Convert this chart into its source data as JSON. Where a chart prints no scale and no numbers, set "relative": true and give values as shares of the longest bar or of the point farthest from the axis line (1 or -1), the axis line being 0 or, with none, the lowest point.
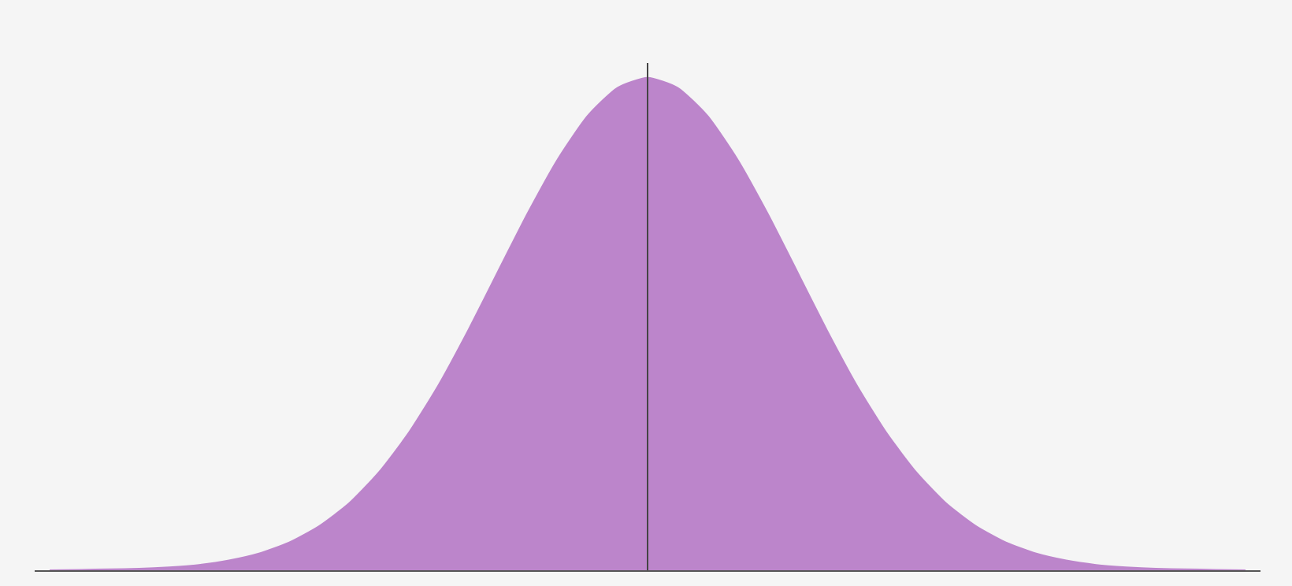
{
  "chart_data": {
    "type": "area",
    "relative": true,
    "color": "#bc85cb",
    "categories": [
      null,
      null,
      null,
      null,
      null,
      null,
      null,
      null,
      null,
      null,
      null,
      null,
      null,
      null,
      null,
      null,
      null,
      null,
      null,
      null,
      null,
      null,
      null,
      null,
      null,
      null,
      null,
      null,
      null,
      null,
      null,
      null,
      null,
      null,
      null,
      null,
      null,
      null,
      null,
      null,
      null
    ],
    "values": [
      0,
      0.001,
      0.002,
      0.003,
      0.006,
      0.011,
      0.02,
      0.034,
      0.056,
      0.089,
      0.135,
      0.198,
      0.278,
      0.375,
      0.487,
      0.607,
      0.726,
      0.835,
      0.923,
      0.98,
      1,
      0.98,
      0.923,
      0.835,
      0.726,
      0.607,
      0.487,
      0.375,
      0.278,
      0.198,
      0.135,
      0.089,
      0.056,
      0.034,
      0.02,
      0.011,
      0.006,
      0.003,
      0.002,
      0.001,
      0
    ]
  }
}
